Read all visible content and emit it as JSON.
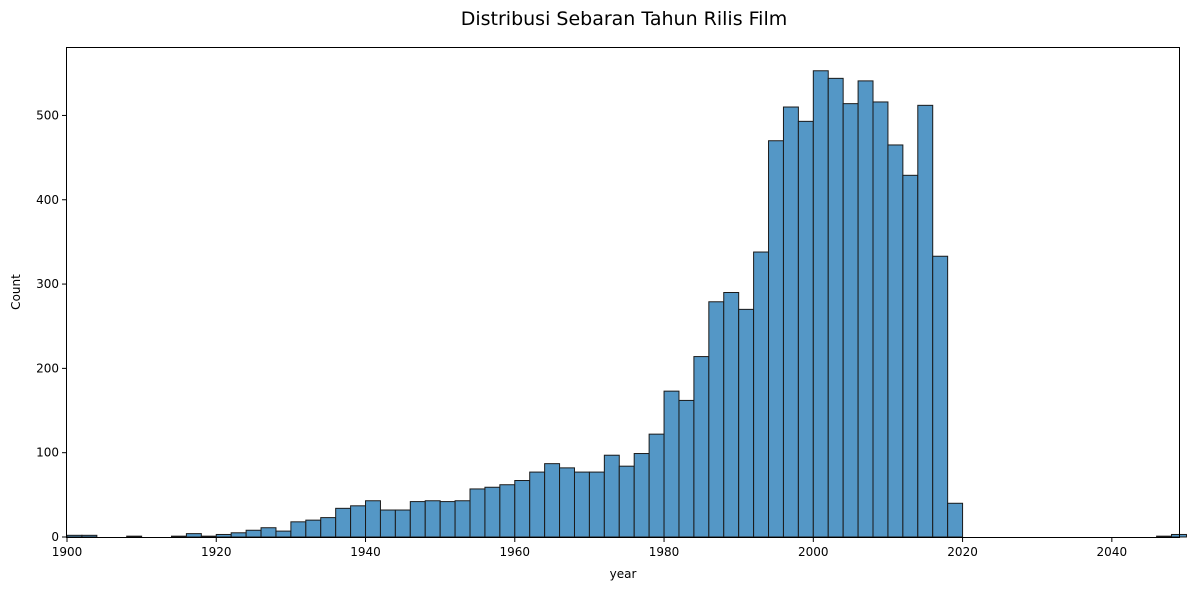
{
  "chart_data": {
    "type": "histogram",
    "title": "Distribusi Sebaran Tahun Rilis Film",
    "xlabel": "year",
    "ylabel": "Count",
    "xlim": [
      1900,
      2049
    ],
    "ylim": [
      0,
      580
    ],
    "xticks": [
      1900,
      1920,
      1940,
      1960,
      1980,
      2000,
      2020,
      2040
    ],
    "yticks": [
      0,
      100,
      200,
      300,
      400,
      500
    ],
    "bin_width": 2,
    "bins_start": [
      1900,
      1902,
      1904,
      1906,
      1908,
      1910,
      1912,
      1914,
      1916,
      1918,
      1920,
      1922,
      1924,
      1926,
      1928,
      1930,
      1932,
      1934,
      1936,
      1938,
      1940,
      1942,
      1944,
      1946,
      1948,
      1950,
      1952,
      1954,
      1956,
      1958,
      1960,
      1962,
      1964,
      1966,
      1968,
      1970,
      1972,
      1974,
      1976,
      1978,
      1980,
      1982,
      1984,
      1986,
      1988,
      1990,
      1992,
      1994,
      1996,
      1998,
      2000,
      2002,
      2004,
      2006,
      2008,
      2010,
      2012,
      2014,
      2016,
      2018,
      2020,
      2022,
      2024,
      2026,
      2028,
      2030,
      2032,
      2034,
      2036,
      2038,
      2040,
      2042,
      2044,
      2046,
      2048
    ],
    "counts": [
      2,
      2,
      0,
      0,
      1,
      0,
      0,
      1,
      4,
      1,
      3,
      5,
      8,
      11,
      7,
      18,
      20,
      23,
      34,
      37,
      43,
      32,
      32,
      42,
      43,
      42,
      43,
      57,
      59,
      62,
      67,
      77,
      87,
      82,
      77,
      77,
      97,
      84,
      99,
      122,
      173,
      162,
      214,
      279,
      290,
      270,
      338,
      470,
      510,
      493,
      553,
      544,
      514,
      541,
      516,
      465,
      429,
      512,
      333,
      40,
      0,
      0,
      0,
      0,
      0,
      0,
      0,
      0,
      0,
      0,
      0,
      0,
      0,
      1,
      3
    ],
    "grid": false,
    "bar_color": "#5497c6",
    "edge_color": "#1a1a1a"
  }
}
